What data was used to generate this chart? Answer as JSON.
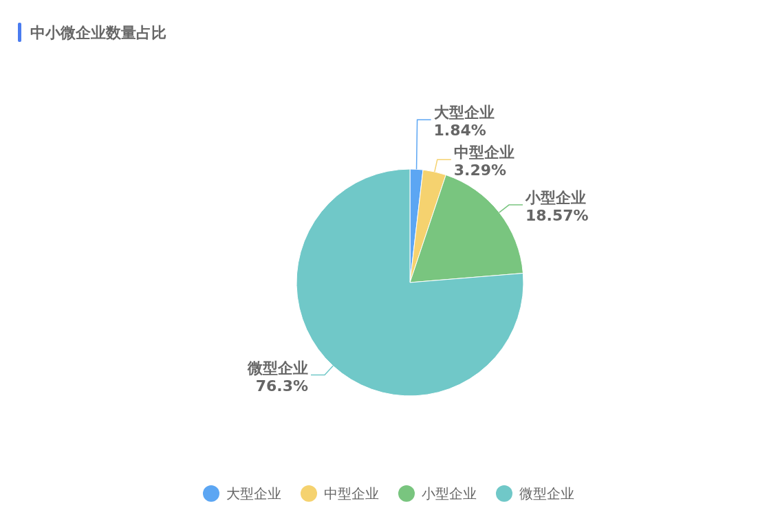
{
  "chart_data": {
    "type": "pie",
    "title": "中小微企业数量占比",
    "categories": [
      "大型企业",
      "中型企业",
      "小型企业",
      "微型企业"
    ],
    "values": [
      1.84,
      3.29,
      18.57,
      76.3
    ],
    "colors": [
      "#5ca6f3",
      "#f5d26f",
      "#79c57f",
      "#70c8c8"
    ],
    "value_labels": [
      "1.84%",
      "3.29%",
      "18.57%",
      "76.3%"
    ],
    "legend": "bottom"
  }
}
